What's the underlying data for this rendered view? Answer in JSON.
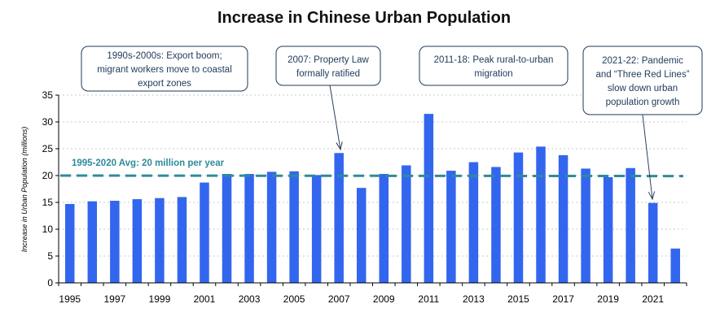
{
  "chart_data": {
    "type": "bar",
    "title": "Increase in Chinese Urban Population",
    "ylabel": "Increase in Urban Population (millions)",
    "xlabel": "",
    "ylim": [
      0,
      35
    ],
    "yticks": [
      0,
      5,
      10,
      15,
      20,
      25,
      30,
      35
    ],
    "grid": true,
    "bar_color": "#3366ee",
    "categories": [
      1995,
      1996,
      1997,
      1998,
      1999,
      2000,
      2001,
      2002,
      2003,
      2004,
      2005,
      2006,
      2007,
      2008,
      2009,
      2010,
      2011,
      2012,
      2013,
      2014,
      2015,
      2016,
      2017,
      2018,
      2019,
      2020,
      2021,
      2022
    ],
    "x_tick_labels": [
      "1995",
      "1997",
      "1999",
      "2001",
      "2003",
      "2005",
      "2007",
      "2009",
      "2011",
      "2013",
      "2015",
      "2017",
      "2019",
      "2021"
    ],
    "values": [
      14.7,
      15.2,
      15.3,
      15.6,
      15.8,
      16.0,
      18.7,
      20.3,
      20.3,
      20.7,
      20.8,
      20.1,
      24.2,
      17.7,
      20.3,
      21.9,
      31.5,
      20.9,
      22.5,
      21.6,
      24.3,
      25.4,
      23.8,
      21.3,
      19.7,
      21.4,
      14.9,
      6.4
    ],
    "average_line": {
      "value": 20.0,
      "label": "1995-2020 Avg: 20 million per year",
      "color": "#2e8b9a"
    },
    "annotations": [
      {
        "lines": [
          "1990s-2000s: Export boom;",
          "migrant workers move to coastal",
          "export zones"
        ]
      },
      {
        "lines": [
          "2007: Property Law",
          "formally ratified"
        ],
        "points_to": 2007
      },
      {
        "lines": [
          "2011-18: Peak rural-to-urban",
          "migration"
        ]
      },
      {
        "lines": [
          "2021-22: Pandemic",
          "and “Three Red Lines”",
          "slow down urban",
          "population growth"
        ],
        "points_to": 2021
      }
    ]
  }
}
